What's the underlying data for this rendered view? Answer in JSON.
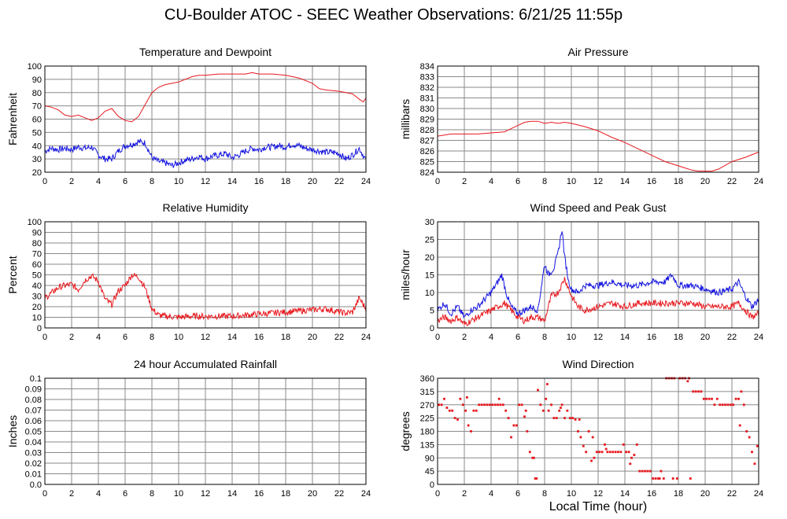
{
  "title": "CU-Boulder ATOC - SEEC Weather Observations: 6/21/25 11:55p",
  "xlabel_global": "Local Time (hour)",
  "colors": {
    "red": "#e8181e",
    "blue": "#1414e0",
    "grid": "#8a8a8a",
    "frame": "#000000"
  },
  "chart_data": [
    {
      "id": "temp",
      "type": "line",
      "title": "Temperature and Dewpoint",
      "xlabel": "",
      "ylabel": "Fahrenheit",
      "xlim": [
        0,
        24
      ],
      "ylim": [
        20,
        100
      ],
      "xticks": [
        0,
        2,
        4,
        6,
        8,
        10,
        12,
        14,
        16,
        18,
        20,
        22,
        24
      ],
      "yticks": [
        20,
        30,
        40,
        50,
        60,
        70,
        80,
        90,
        100
      ],
      "grid": true,
      "series": [
        {
          "color": "red",
          "x": [
            0,
            0.5,
            1,
            1.5,
            2,
            2.5,
            3,
            3.5,
            4,
            4.5,
            5,
            5.5,
            6,
            6.5,
            7,
            7.5,
            8,
            8.5,
            9,
            9.5,
            10,
            10.5,
            11,
            11.5,
            12,
            13,
            14,
            15,
            15.5,
            16,
            17,
            18,
            19,
            20,
            20.5,
            21,
            22,
            23,
            23.5,
            23.8,
            24
          ],
          "y": [
            70,
            69,
            67,
            63,
            62,
            63,
            61,
            59,
            61,
            66,
            68,
            62,
            59,
            58,
            62,
            71,
            80,
            84,
            86,
            87,
            88,
            90,
            92,
            93,
            93,
            94,
            94,
            94,
            95,
            94,
            94,
            93,
            91,
            87,
            83,
            82,
            81,
            79,
            75,
            73,
            76
          ]
        },
        {
          "color": "blue",
          "noisy": true,
          "x": [
            0,
            0.5,
            1,
            1.5,
            2,
            2.5,
            3,
            3.5,
            4,
            4.5,
            5,
            5.5,
            6,
            6.5,
            7,
            7.5,
            8,
            8.5,
            9,
            9.5,
            10,
            10.5,
            11,
            11.5,
            12,
            12.5,
            13,
            13.5,
            14,
            14.5,
            15,
            15.5,
            16,
            16.5,
            17,
            17.5,
            18,
            18.5,
            19,
            19.5,
            20,
            20.5,
            21,
            21.5,
            22,
            22.5,
            23,
            23.5,
            24
          ],
          "y": [
            36,
            38,
            37,
            38,
            37,
            39,
            38,
            39,
            33,
            30,
            30,
            36,
            40,
            41,
            43,
            42,
            31,
            28,
            27,
            25,
            27,
            29,
            30,
            32,
            30,
            32,
            33,
            34,
            31,
            33,
            36,
            38,
            37,
            39,
            39,
            40,
            39,
            41,
            40,
            38,
            37,
            36,
            35,
            35,
            34,
            30,
            33,
            38,
            29
          ]
        }
      ]
    },
    {
      "id": "pressure",
      "type": "line",
      "title": "Air Pressure",
      "xlabel": "",
      "ylabel": "millibars",
      "xlim": [
        0,
        24
      ],
      "ylim": [
        824,
        834
      ],
      "xticks": [
        0,
        2,
        4,
        6,
        8,
        10,
        12,
        14,
        16,
        18,
        20,
        22,
        24
      ],
      "yticks": [
        824,
        825,
        826,
        827,
        828,
        829,
        830,
        831,
        832,
        833,
        834
      ],
      "grid": true,
      "series": [
        {
          "color": "red",
          "x": [
            0,
            1,
            2,
            3,
            4,
            5,
            5.5,
            6,
            6.5,
            7,
            7.5,
            8,
            8.5,
            9,
            9.5,
            10,
            11,
            12,
            13,
            14,
            15,
            16,
            17,
            18,
            18.5,
            19,
            19.5,
            20,
            20.5,
            21,
            22,
            23,
            24
          ],
          "y": [
            827.4,
            827.6,
            827.6,
            827.6,
            827.7,
            827.8,
            828.1,
            828.4,
            828.7,
            828.8,
            828.8,
            828.6,
            828.7,
            828.6,
            828.7,
            828.6,
            828.3,
            827.9,
            827.3,
            826.8,
            826.2,
            825.6,
            825.0,
            824.6,
            824.4,
            824.2,
            824.1,
            824.1,
            824.1,
            824.3,
            825.0,
            825.4,
            825.9
          ]
        }
      ]
    },
    {
      "id": "humidity",
      "type": "line",
      "title": "Relative Humidity",
      "xlabel": "",
      "ylabel": "Percent",
      "xlim": [
        0,
        24
      ],
      "ylim": [
        0,
        100
      ],
      "xticks": [
        0,
        2,
        4,
        6,
        8,
        10,
        12,
        14,
        16,
        18,
        20,
        22,
        24
      ],
      "yticks": [
        0,
        10,
        20,
        30,
        40,
        50,
        60,
        70,
        80,
        90,
        100
      ],
      "grid": true,
      "series": [
        {
          "color": "red",
          "noisy": true,
          "x": [
            0,
            0.5,
            1,
            1.5,
            2,
            2.5,
            3,
            3.5,
            4,
            4.5,
            5,
            5.5,
            6,
            6.5,
            7,
            7.5,
            8,
            8.5,
            9,
            10,
            11,
            12,
            13,
            14,
            15,
            16,
            17,
            18,
            19,
            20,
            21,
            22,
            22.5,
            23,
            23.5,
            24
          ],
          "y": [
            28,
            33,
            38,
            40,
            41,
            36,
            45,
            49,
            44,
            27,
            22,
            35,
            40,
            50,
            48,
            38,
            18,
            12,
            11,
            10,
            11,
            11,
            11,
            11,
            12,
            13,
            14,
            15,
            16,
            17,
            18,
            15,
            14,
            15,
            28,
            18
          ]
        }
      ]
    },
    {
      "id": "wind",
      "type": "line",
      "title": "Wind Speed and Peak Gust",
      "xlabel": "",
      "ylabel": "miles/hour",
      "xlim": [
        0,
        24
      ],
      "ylim": [
        0,
        30
      ],
      "xticks": [
        0,
        2,
        4,
        6,
        8,
        10,
        12,
        14,
        16,
        18,
        20,
        22,
        24
      ],
      "yticks": [
        0,
        5,
        10,
        15,
        20,
        25,
        30
      ],
      "grid": true,
      "series": [
        {
          "color": "blue",
          "noisy": true,
          "x": [
            0,
            0.5,
            1,
            1.5,
            2,
            2.5,
            3,
            3.5,
            4,
            4.5,
            4.8,
            5.2,
            5.5,
            6,
            6.5,
            7,
            7.5,
            8,
            8.3,
            8.7,
            9,
            9.3,
            9.5,
            9.8,
            10,
            10.5,
            11,
            12,
            13,
            14,
            15,
            16,
            17,
            17.5,
            18,
            19,
            20,
            21,
            22,
            22.5,
            23,
            23.5,
            24
          ],
          "y": [
            5,
            7,
            4,
            6,
            3,
            5,
            6,
            8,
            10,
            13,
            15,
            9,
            6,
            4,
            5,
            6,
            5,
            18,
            15,
            17,
            21,
            28,
            20,
            13,
            11,
            10,
            12,
            12,
            13,
            12,
            12,
            13,
            13,
            15,
            12,
            12,
            11,
            10,
            11,
            13,
            9,
            6,
            8
          ]
        },
        {
          "color": "red",
          "noisy": true,
          "x": [
            0,
            0.5,
            1,
            1.5,
            2,
            2.5,
            3,
            3.5,
            4,
            4.5,
            5,
            5.5,
            6,
            6.5,
            7,
            7.5,
            8,
            8.5,
            9,
            9.5,
            10,
            10.5,
            11,
            12,
            13,
            14,
            15,
            16,
            17,
            18,
            19,
            20,
            21,
            22,
            22.5,
            23,
            23.5,
            24
          ],
          "y": [
            2,
            3,
            2,
            3,
            1,
            2,
            3,
            4,
            5,
            6,
            7,
            5,
            3,
            2,
            3,
            3,
            2,
            9,
            10,
            14,
            9,
            6,
            5,
            6,
            7,
            6,
            7,
            7,
            7,
            7,
            7,
            6,
            6,
            6,
            7,
            5,
            3,
            4
          ]
        }
      ]
    },
    {
      "id": "rain",
      "type": "line",
      "title": "24 hour Accumulated Rainfall",
      "xlabel": "",
      "ylabel": "Inches",
      "xlim": [
        0,
        24
      ],
      "ylim": [
        0,
        0.1
      ],
      "xticks": [
        0,
        2,
        4,
        6,
        8,
        10,
        12,
        14,
        16,
        18,
        20,
        22,
        24
      ],
      "yticks": [
        "0.0",
        "0.01",
        "0.02",
        "0.03",
        "0.04",
        "0.05",
        "0.06",
        "0.07",
        "0.08",
        "0.09",
        "0.1"
      ],
      "grid": true,
      "series": [
        {
          "color": "red",
          "x": [
            0,
            24
          ],
          "y": [
            0,
            0
          ]
        }
      ]
    },
    {
      "id": "direction",
      "type": "scatter",
      "title": "Wind Direction",
      "xlabel": "Local Time (hour)",
      "ylabel": "degrees",
      "xlim": [
        0,
        24
      ],
      "ylim": [
        0,
        360
      ],
      "xticks": [
        0,
        2,
        4,
        6,
        8,
        10,
        12,
        14,
        16,
        18,
        20,
        22,
        24
      ],
      "yticks": [
        0,
        45,
        90,
        135,
        180,
        225,
        270,
        315,
        360
      ],
      "grid": true,
      "series": [
        {
          "color": "red",
          "x": [
            0.1,
            0.3,
            0.5,
            0.7,
            0.9,
            1.1,
            1.3,
            1.5,
            1.7,
            1.9,
            2.1,
            2.3,
            2.5,
            2.7,
            2.9,
            3.1,
            3.3,
            3.5,
            3.7,
            3.9,
            4.1,
            4.3,
            4.5,
            4.7,
            4.9,
            5.1,
            5.3,
            5.5,
            5.7,
            5.9,
            6.1,
            6.3,
            6.5,
            6.7,
            6.9,
            7.1,
            7.3,
            7.5,
            7.7,
            7.9,
            8.1,
            8.3,
            8.5,
            8.7,
            8.9,
            9.1,
            9.3,
            9.5,
            9.7,
            9.9,
            10.1,
            10.3,
            10.5,
            10.7,
            10.9,
            11.1,
            11.3,
            11.5,
            11.7,
            11.9,
            12.1,
            12.3,
            12.5,
            12.7,
            12.9,
            13.1,
            13.3,
            13.5,
            13.7,
            13.9,
            14.1,
            14.3,
            14.5,
            14.7,
            14.9,
            15.1,
            15.3,
            15.5,
            15.7,
            15.9,
            16.1,
            16.3,
            16.5,
            16.7,
            16.9,
            17.1,
            17.3,
            17.5,
            17.7,
            17.9,
            18.1,
            18.3,
            18.5,
            18.7,
            18.9,
            19.1,
            19.3,
            19.5,
            19.7,
            19.9,
            20.1,
            20.3,
            20.5,
            20.7,
            20.9,
            21.1,
            21.3,
            21.5,
            21.7,
            21.9,
            22.1,
            22.3,
            22.5,
            22.7,
            22.9,
            23.1,
            23.3,
            23.5,
            23.7,
            23.9,
            2.2,
            4.6,
            6.6,
            7.2,
            7.4,
            8.2,
            9.2,
            10.6,
            11.6,
            12.6,
            14.4,
            16.6,
            17.6,
            18.8,
            22.6
          ],
          "y": [
            270,
            270,
            290,
            260,
            250,
            250,
            225,
            220,
            290,
            270,
            250,
            200,
            180,
            250,
            250,
            270,
            270,
            270,
            270,
            270,
            270,
            270,
            270,
            270,
            270,
            250,
            225,
            160,
            200,
            200,
            270,
            270,
            230,
            180,
            110,
            90,
            20,
            320,
            270,
            250,
            290,
            250,
            270,
            225,
            225,
            250,
            270,
            225,
            250,
            225,
            225,
            220,
            180,
            160,
            130,
            110,
            180,
            80,
            90,
            110,
            110,
            110,
            135,
            110,
            110,
            110,
            110,
            110,
            110,
            135,
            110,
            110,
            90,
            100,
            135,
            45,
            45,
            45,
            45,
            45,
            20,
            20,
            20,
            45,
            20,
            360,
            360,
            360,
            360,
            20,
            360,
            360,
            360,
            350,
            20,
            315,
            315,
            315,
            315,
            290,
            290,
            290,
            290,
            270,
            290,
            270,
            270,
            270,
            270,
            270,
            270,
            290,
            290,
            315,
            270,
            180,
            160,
            110,
            70,
            130,
            295,
            290,
            250,
            90,
            20,
            340,
            260,
            220,
            160,
            120,
            70,
            20,
            20,
            360,
            200
          ]
        }
      ]
    }
  ]
}
